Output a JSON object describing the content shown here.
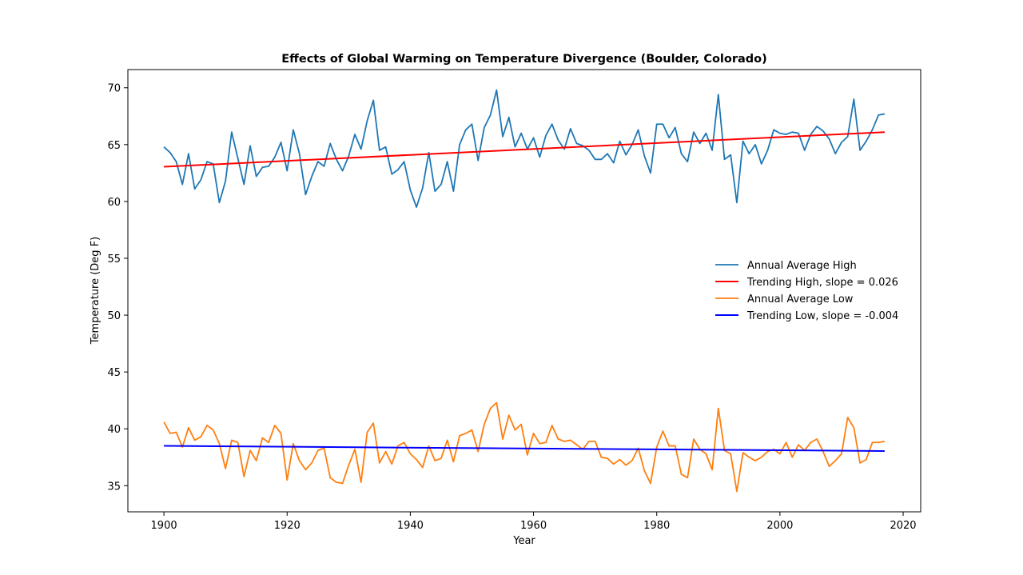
{
  "chart_data": {
    "type": "line",
    "title": "Effects of Global Warming on Temperature Divergence (Boulder, Colorado)",
    "xlabel": "Year",
    "ylabel": "Temperature (Deg F)",
    "xlim": [
      1894.15,
      2022.85
    ],
    "ylim": [
      32.7,
      71.6
    ],
    "xticks": [
      1900,
      1920,
      1940,
      1960,
      1980,
      2000,
      2020
    ],
    "yticks": [
      35,
      40,
      45,
      50,
      55,
      60,
      65,
      70
    ],
    "grid": false,
    "legend_position": "center-right",
    "x": [
      1900,
      1901,
      1902,
      1903,
      1904,
      1905,
      1906,
      1907,
      1908,
      1909,
      1910,
      1911,
      1912,
      1913,
      1914,
      1915,
      1916,
      1917,
      1918,
      1919,
      1920,
      1921,
      1922,
      1923,
      1924,
      1925,
      1926,
      1927,
      1928,
      1929,
      1930,
      1931,
      1932,
      1933,
      1934,
      1935,
      1936,
      1937,
      1938,
      1939,
      1940,
      1941,
      1942,
      1943,
      1944,
      1945,
      1946,
      1947,
      1948,
      1949,
      1950,
      1951,
      1952,
      1953,
      1954,
      1955,
      1956,
      1957,
      1958,
      1959,
      1960,
      1961,
      1962,
      1963,
      1964,
      1965,
      1966,
      1967,
      1968,
      1969,
      1970,
      1971,
      1972,
      1973,
      1974,
      1975,
      1976,
      1977,
      1978,
      1979,
      1980,
      1981,
      1982,
      1983,
      1984,
      1985,
      1986,
      1987,
      1988,
      1989,
      1990,
      1991,
      1992,
      1993,
      1994,
      1995,
      1996,
      1997,
      1998,
      1999,
      2000,
      2001,
      2002,
      2003,
      2004,
      2005,
      2006,
      2007,
      2008,
      2009,
      2010,
      2011,
      2012,
      2013,
      2014,
      2015,
      2016,
      2017
    ],
    "series": [
      {
        "name": "Annual Average High",
        "color": "#1f77b4",
        "style": "line",
        "values": [
          64.8,
          64.3,
          63.5,
          61.5,
          64.2,
          61.1,
          61.9,
          63.5,
          63.3,
          59.9,
          61.8,
          66.1,
          63.8,
          61.5,
          64.9,
          62.2,
          63.0,
          63.1,
          63.9,
          65.2,
          62.7,
          66.3,
          64.2,
          60.6,
          62.2,
          63.5,
          63.1,
          65.1,
          63.7,
          62.7,
          64.0,
          65.9,
          64.6,
          67.1,
          68.9,
          64.5,
          64.8,
          62.4,
          62.8,
          63.5,
          61.0,
          59.5,
          61.2,
          64.3,
          60.9,
          61.5,
          63.5,
          60.9,
          65.0,
          66.3,
          66.8,
          63.6,
          66.5,
          67.6,
          69.8,
          65.7,
          67.4,
          64.8,
          66.0,
          64.6,
          65.6,
          63.9,
          65.8,
          66.8,
          65.4,
          64.6,
          66.4,
          65.1,
          64.9,
          64.5,
          63.7,
          63.7,
          64.2,
          63.4,
          65.3,
          64.1,
          65.0,
          66.3,
          64.0,
          62.5,
          66.8,
          66.8,
          65.6,
          66.5,
          64.2,
          63.5,
          66.1,
          65.1,
          66.0,
          64.5,
          69.4,
          63.7,
          64.1,
          59.9,
          65.3,
          64.2,
          65.0,
          63.3,
          64.5,
          66.3,
          66.0,
          65.9,
          66.1,
          66.0,
          64.5,
          65.9,
          66.6,
          66.2,
          65.5,
          64.2,
          65.2,
          65.7,
          69.0,
          64.5,
          65.3,
          66.3,
          67.6,
          67.7
        ]
      },
      {
        "name": "Trending High, slope = 0.026",
        "color": "#ff0000",
        "style": "trend",
        "x": [
          1900,
          2017
        ],
        "values": [
          63.05,
          66.1
        ]
      },
      {
        "name": "Annual Average Low",
        "color": "#ff7f0e",
        "style": "line",
        "values": [
          40.6,
          39.6,
          39.7,
          38.4,
          40.1,
          39.0,
          39.3,
          40.3,
          39.9,
          38.7,
          36.5,
          39.0,
          38.8,
          35.8,
          38.1,
          37.2,
          39.2,
          38.8,
          40.3,
          39.6,
          35.5,
          38.7,
          37.2,
          36.4,
          37.0,
          38.1,
          38.3,
          35.7,
          35.3,
          35.2,
          36.8,
          38.2,
          35.3,
          39.7,
          40.5,
          37.0,
          38.0,
          36.9,
          38.5,
          38.8,
          37.8,
          37.3,
          36.6,
          38.5,
          37.2,
          37.4,
          39.0,
          37.1,
          39.4,
          39.6,
          39.9,
          38.0,
          40.4,
          41.8,
          42.3,
          39.1,
          41.2,
          39.9,
          40.4,
          37.7,
          39.6,
          38.7,
          38.8,
          40.3,
          39.1,
          38.9,
          39.0,
          38.6,
          38.2,
          38.9,
          38.9,
          37.5,
          37.4,
          36.9,
          37.3,
          36.8,
          37.2,
          38.3,
          36.3,
          35.2,
          38.4,
          39.8,
          38.5,
          38.5,
          36.0,
          35.7,
          39.1,
          38.2,
          37.8,
          36.4,
          41.8,
          38.1,
          37.8,
          34.5,
          37.9,
          37.5,
          37.2,
          37.5,
          38.0,
          38.2,
          37.8,
          38.8,
          37.5,
          38.6,
          38.1,
          38.8,
          39.1,
          38.0,
          36.7,
          37.2,
          37.8,
          41.0,
          40.1,
          37.0,
          37.3,
          38.8,
          38.8,
          38.9
        ]
      },
      {
        "name": "Trending Low, slope = -0.004",
        "color": "#0000ff",
        "style": "trend",
        "x": [
          1900,
          2017
        ],
        "values": [
          38.5,
          38.05
        ]
      }
    ]
  }
}
